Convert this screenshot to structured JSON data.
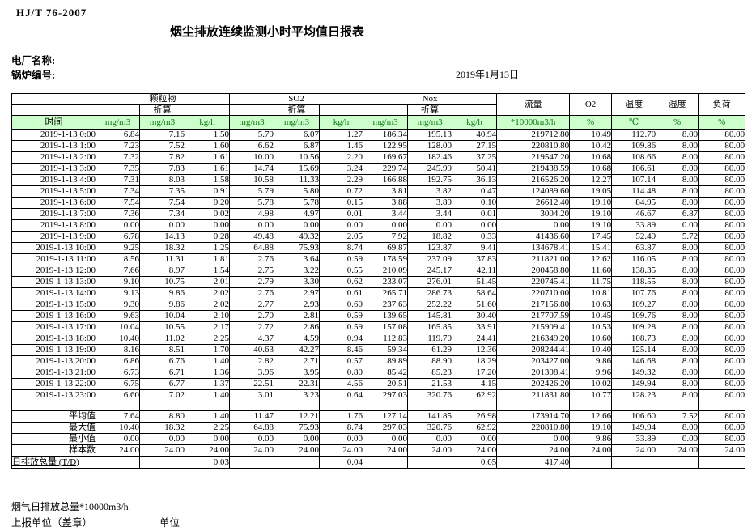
{
  "page": {
    "standard_code": "HJ/T  76-2007",
    "title": "烟尘排放连续监测小时平均值日报表",
    "plant_name_label": "电厂名称:",
    "boiler_no_label": "锅炉编号:",
    "report_date": "2019年1月13日"
  },
  "table": {
    "time_header": "时间",
    "converted_label": "折算",
    "groups": [
      {
        "label": "颗粒物",
        "units": [
          "mg/m3",
          "mg/m3",
          "kg/h"
        ]
      },
      {
        "label": "SO2",
        "units": [
          "mg/m3",
          "mg/m3",
          "kg/h"
        ]
      },
      {
        "label": "Nox",
        "units": [
          "mg/m3",
          "mg/m3",
          "kg/h"
        ]
      }
    ],
    "single_columns": [
      {
        "label": "流量",
        "unit": "*10000m3/h"
      },
      {
        "label": "O2",
        "unit": "%"
      },
      {
        "label": "温度",
        "unit": "℃"
      },
      {
        "label": "湿度",
        "unit": "%"
      },
      {
        "label": "负荷",
        "unit": "%"
      }
    ],
    "rows": [
      {
        "time": "2019-1-13 0:00",
        "values": [
          "6.84",
          "7.16",
          "1.50",
          "5.79",
          "6.07",
          "1.27",
          "186.34",
          "195.13",
          "40.94",
          "219712.80",
          "10.49",
          "112.70",
          "8.00",
          "80.00"
        ]
      },
      {
        "time": "2019-1-13 1:00",
        "values": [
          "7.23",
          "7.52",
          "1.60",
          "6.62",
          "6.87",
          "1.46",
          "122.95",
          "128.00",
          "27.15",
          "220810.80",
          "10.42",
          "109.86",
          "8.00",
          "80.00"
        ]
      },
      {
        "time": "2019-1-13 2:00",
        "values": [
          "7.32",
          "7.82",
          "1.61",
          "10.00",
          "10.56",
          "2.20",
          "169.67",
          "182.46",
          "37.25",
          "219547.20",
          "10.68",
          "108.66",
          "8.00",
          "80.00"
        ]
      },
      {
        "time": "2019-1-13 3:00",
        "values": [
          "7.35",
          "7.83",
          "1.61",
          "14.74",
          "15.69",
          "3.24",
          "229.74",
          "245.99",
          "50.41",
          "219438.59",
          "10.68",
          "106.61",
          "8.00",
          "80.00"
        ]
      },
      {
        "time": "2019-1-13 4:00",
        "values": [
          "7.31",
          "8.03",
          "1.58",
          "10.58",
          "11.33",
          "2.29",
          "166.88",
          "192.75",
          "36.13",
          "216526.20",
          "12.27",
          "107.14",
          "8.00",
          "80.00"
        ]
      },
      {
        "time": "2019-1-13 5:00",
        "values": [
          "7.34",
          "7.35",
          "0.91",
          "5.79",
          "5.80",
          "0.72",
          "3.81",
          "3.82",
          "0.47",
          "124089.60",
          "19.05",
          "114.48",
          "8.00",
          "80.00"
        ]
      },
      {
        "time": "2019-1-13 6:00",
        "values": [
          "7.54",
          "7.54",
          "0.20",
          "5.78",
          "5.78",
          "0.15",
          "3.88",
          "3.89",
          "0.10",
          "26612.40",
          "19.10",
          "84.95",
          "8.00",
          "80.00"
        ]
      },
      {
        "time": "2019-1-13 7:00",
        "values": [
          "7.36",
          "7.34",
          "0.02",
          "4.98",
          "4.97",
          "0.01",
          "3.44",
          "3.44",
          "0.01",
          "3004.20",
          "19.10",
          "46.67",
          "6.87",
          "80.00"
        ]
      },
      {
        "time": "2019-1-13 8:00",
        "values": [
          "0.00",
          "0.00",
          "0.00",
          "0.00",
          "0.00",
          "0.00",
          "0.00",
          "0.00",
          "0.00",
          "0.00",
          "19.10",
          "33.89",
          "0.00",
          "80.00"
        ]
      },
      {
        "time": "2019-1-13 9:00",
        "values": [
          "6.78",
          "14.13",
          "0.28",
          "49.48",
          "49.32",
          "2.05",
          "7.92",
          "18.82",
          "0.33",
          "41436.60",
          "17.45",
          "52.49",
          "5.72",
          "80.00"
        ]
      },
      {
        "time": "2019-1-13 10:00",
        "values": [
          "9.25",
          "18.32",
          "1.25",
          "64.88",
          "75.93",
          "8.74",
          "69.87",
          "123.87",
          "9.41",
          "134678.41",
          "15.41",
          "63.87",
          "8.00",
          "80.00"
        ]
      },
      {
        "time": "2019-1-13 11:00",
        "values": [
          "8.56",
          "11.31",
          "1.81",
          "2.76",
          "3.64",
          "0.59",
          "178.59",
          "237.09",
          "37.83",
          "211821.00",
          "12.62",
          "116.05",
          "8.00",
          "80.00"
        ]
      },
      {
        "time": "2019-1-13 12:00",
        "values": [
          "7.66",
          "8.97",
          "1.54",
          "2.75",
          "3.22",
          "0.55",
          "210.09",
          "245.17",
          "42.11",
          "200458.80",
          "11.60",
          "138.35",
          "8.00",
          "80.00"
        ]
      },
      {
        "time": "2019-1-13 13:00",
        "values": [
          "9.10",
          "10.75",
          "2.01",
          "2.79",
          "3.30",
          "0.62",
          "233.07",
          "276.01",
          "51.45",
          "220745.41",
          "11.75",
          "118.55",
          "8.00",
          "80.00"
        ]
      },
      {
        "time": "2019-1-13 14:00",
        "values": [
          "9.13",
          "9.86",
          "2.02",
          "2.76",
          "2.97",
          "0.61",
          "265.71",
          "286.73",
          "58.64",
          "220710.00",
          "10.81",
          "107.76",
          "8.00",
          "80.00"
        ]
      },
      {
        "time": "2019-1-13 15:00",
        "values": [
          "9.30",
          "9.86",
          "2.02",
          "2.77",
          "2.93",
          "0.60",
          "237.63",
          "252.22",
          "51.60",
          "217156.80",
          "10.63",
          "109.27",
          "8.00",
          "80.00"
        ]
      },
      {
        "time": "2019-1-13 16:00",
        "values": [
          "9.63",
          "10.04",
          "2.10",
          "2.70",
          "2.81",
          "0.59",
          "139.65",
          "145.81",
          "30.40",
          "217707.59",
          "10.45",
          "109.76",
          "8.00",
          "80.00"
        ]
      },
      {
        "time": "2019-1-13 17:00",
        "values": [
          "10.04",
          "10.55",
          "2.17",
          "2.72",
          "2.86",
          "0.59",
          "157.08",
          "165.85",
          "33.91",
          "215909.41",
          "10.53",
          "109.28",
          "8.00",
          "80.00"
        ]
      },
      {
        "time": "2019-1-13 18:00",
        "values": [
          "10.40",
          "11.02",
          "2.25",
          "4.37",
          "4.59",
          "0.94",
          "112.83",
          "119.70",
          "24.41",
          "216349.20",
          "10.60",
          "108.73",
          "8.00",
          "80.00"
        ]
      },
      {
        "time": "2019-1-13 19:00",
        "values": [
          "8.16",
          "8.51",
          "1.70",
          "40.63",
          "42.27",
          "8.46",
          "59.34",
          "61.29",
          "12.36",
          "208244.41",
          "10.40",
          "125.14",
          "8.00",
          "80.00"
        ]
      },
      {
        "time": "2019-1-13 20:00",
        "values": [
          "6.86",
          "6.76",
          "1.40",
          "2.82",
          "2.71",
          "0.57",
          "89.89",
          "88.90",
          "18.29",
          "203427.00",
          "9.86",
          "146.68",
          "8.00",
          "80.00"
        ]
      },
      {
        "time": "2019-1-13 21:00",
        "values": [
          "6.73",
          "6.71",
          "1.36",
          "3.96",
          "3.95",
          "0.80",
          "85.42",
          "85.23",
          "17.20",
          "201308.41",
          "9.96",
          "149.32",
          "8.00",
          "80.00"
        ]
      },
      {
        "time": "2019-1-13 22:00",
        "values": [
          "6.75",
          "6.77",
          "1.37",
          "22.51",
          "22.31",
          "4.56",
          "20.51",
          "21.53",
          "4.15",
          "202426.20",
          "10.02",
          "149.94",
          "8.00",
          "80.00"
        ]
      },
      {
        "time": "2019-1-13 23:00",
        "values": [
          "6.60",
          "7.02",
          "1.40",
          "3.01",
          "3.23",
          "0.64",
          "297.03",
          "320.76",
          "62.92",
          "211831.80",
          "10.77",
          "128.23",
          "8.00",
          "80.00"
        ]
      }
    ],
    "summary_rows": [
      {
        "label": "平均值",
        "values": [
          "7.64",
          "8.80",
          "1.40",
          "11.47",
          "12.21",
          "1.76",
          "127.14",
          "141.85",
          "26.98",
          "173914.70",
          "12.66",
          "106.60",
          "7.52",
          "80.00"
        ]
      },
      {
        "label": "最大值",
        "values": [
          "10.40",
          "18.32",
          "2.25",
          "64.88",
          "75.93",
          "8.74",
          "297.03",
          "320.76",
          "62.92",
          "220810.80",
          "19.10",
          "149.94",
          "8.00",
          "80.00"
        ]
      },
      {
        "label": "最小值",
        "values": [
          "0.00",
          "0.00",
          "0.00",
          "0.00",
          "0.00",
          "0.00",
          "0.00",
          "0.00",
          "0.00",
          "0.00",
          "9.86",
          "33.89",
          "0.00",
          "80.00"
        ]
      },
      {
        "label": "样本数",
        "values": [
          "24.00",
          "24.00",
          "24.00",
          "24.00",
          "24.00",
          "24.00",
          "24.00",
          "24.00",
          "24.00",
          "24.00",
          "24.00",
          "24.00",
          "24.00",
          "24.00"
        ]
      }
    ],
    "total_row": {
      "label": "日排放总量 (T/D)",
      "values": [
        "",
        "",
        "0.03",
        "",
        "",
        "0.04",
        "",
        "",
        "0.65",
        "417.40",
        "",
        "",
        "",
        ""
      ]
    }
  },
  "footer": {
    "flue_gas_total_label": "烟气日排放总量*10000m3/h",
    "report_unit_label": "上报单位（盖章）",
    "unit_label": "单位"
  },
  "colors": {
    "header_green_bg": "#ccffcc",
    "unit_text_green": "#0e7a12",
    "border": "#000000"
  }
}
